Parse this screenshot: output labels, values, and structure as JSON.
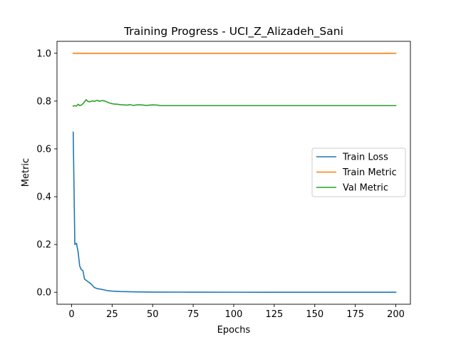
{
  "chart_data": {
    "type": "line",
    "title": "Training Progress - UCI_Z_Alizadeh_Sani",
    "xlabel": "Epochs",
    "ylabel": "Metric",
    "xlim": [
      -9,
      209
    ],
    "ylim": [
      -0.05,
      1.05
    ],
    "xticks": [
      0,
      25,
      50,
      75,
      100,
      125,
      150,
      175,
      200
    ],
    "yticks": [
      0.0,
      0.2,
      0.4,
      0.6,
      0.8,
      1.0
    ],
    "ytick_labels": [
      "0.0",
      "0.2",
      "0.4",
      "0.6",
      "0.8",
      "1.0"
    ],
    "grid": false,
    "legend_position": "center-right",
    "series": [
      {
        "name": "Train Loss",
        "color": "#1f77b4",
        "points": [
          [
            1,
            0.67
          ],
          [
            2,
            0.2
          ],
          [
            3,
            0.205
          ],
          [
            4,
            0.17
          ],
          [
            5,
            0.11
          ],
          [
            6,
            0.095
          ],
          [
            7,
            0.09
          ],
          [
            8,
            0.055
          ],
          [
            10,
            0.045
          ],
          [
            12,
            0.035
          ],
          [
            14,
            0.02
          ],
          [
            16,
            0.015
          ],
          [
            18,
            0.013
          ],
          [
            20,
            0.01
          ],
          [
            22,
            0.007
          ],
          [
            25,
            0.005
          ],
          [
            30,
            0.003
          ],
          [
            40,
            0.0015
          ],
          [
            50,
            0.001
          ],
          [
            75,
            0.0005
          ],
          [
            100,
            0.0003
          ],
          [
            150,
            0.0002
          ],
          [
            200,
            0.0001
          ]
        ]
      },
      {
        "name": "Train Metric",
        "color": "#ff7f0e",
        "points": [
          [
            1,
            1.0
          ],
          [
            200,
            1.0
          ]
        ]
      },
      {
        "name": "Val Metric",
        "color": "#2ca02c",
        "points": [
          [
            1,
            0.779
          ],
          [
            2,
            0.781
          ],
          [
            3,
            0.779
          ],
          [
            4,
            0.787
          ],
          [
            5,
            0.781
          ],
          [
            6,
            0.783
          ],
          [
            7,
            0.789
          ],
          [
            8,
            0.797
          ],
          [
            9,
            0.806
          ],
          [
            10,
            0.799
          ],
          [
            11,
            0.797
          ],
          [
            12,
            0.799
          ],
          [
            13,
            0.801
          ],
          [
            14,
            0.799
          ],
          [
            15,
            0.801
          ],
          [
            16,
            0.803
          ],
          [
            17,
            0.799
          ],
          [
            18,
            0.801
          ],
          [
            19,
            0.802
          ],
          [
            20,
            0.801
          ],
          [
            21,
            0.799
          ],
          [
            22,
            0.796
          ],
          [
            23,
            0.793
          ],
          [
            24,
            0.791
          ],
          [
            25,
            0.789
          ],
          [
            26,
            0.788
          ],
          [
            27,
            0.787
          ],
          [
            28,
            0.787
          ],
          [
            29,
            0.786
          ],
          [
            30,
            0.785
          ],
          [
            32,
            0.784
          ],
          [
            34,
            0.783
          ],
          [
            36,
            0.785
          ],
          [
            38,
            0.782
          ],
          [
            40,
            0.784
          ],
          [
            43,
            0.784
          ],
          [
            46,
            0.782
          ],
          [
            48,
            0.783
          ],
          [
            50,
            0.784
          ],
          [
            53,
            0.783
          ],
          [
            55,
            0.781
          ],
          [
            60,
            0.781
          ],
          [
            100,
            0.781
          ],
          [
            150,
            0.781
          ],
          [
            200,
            0.781
          ]
        ]
      }
    ]
  }
}
